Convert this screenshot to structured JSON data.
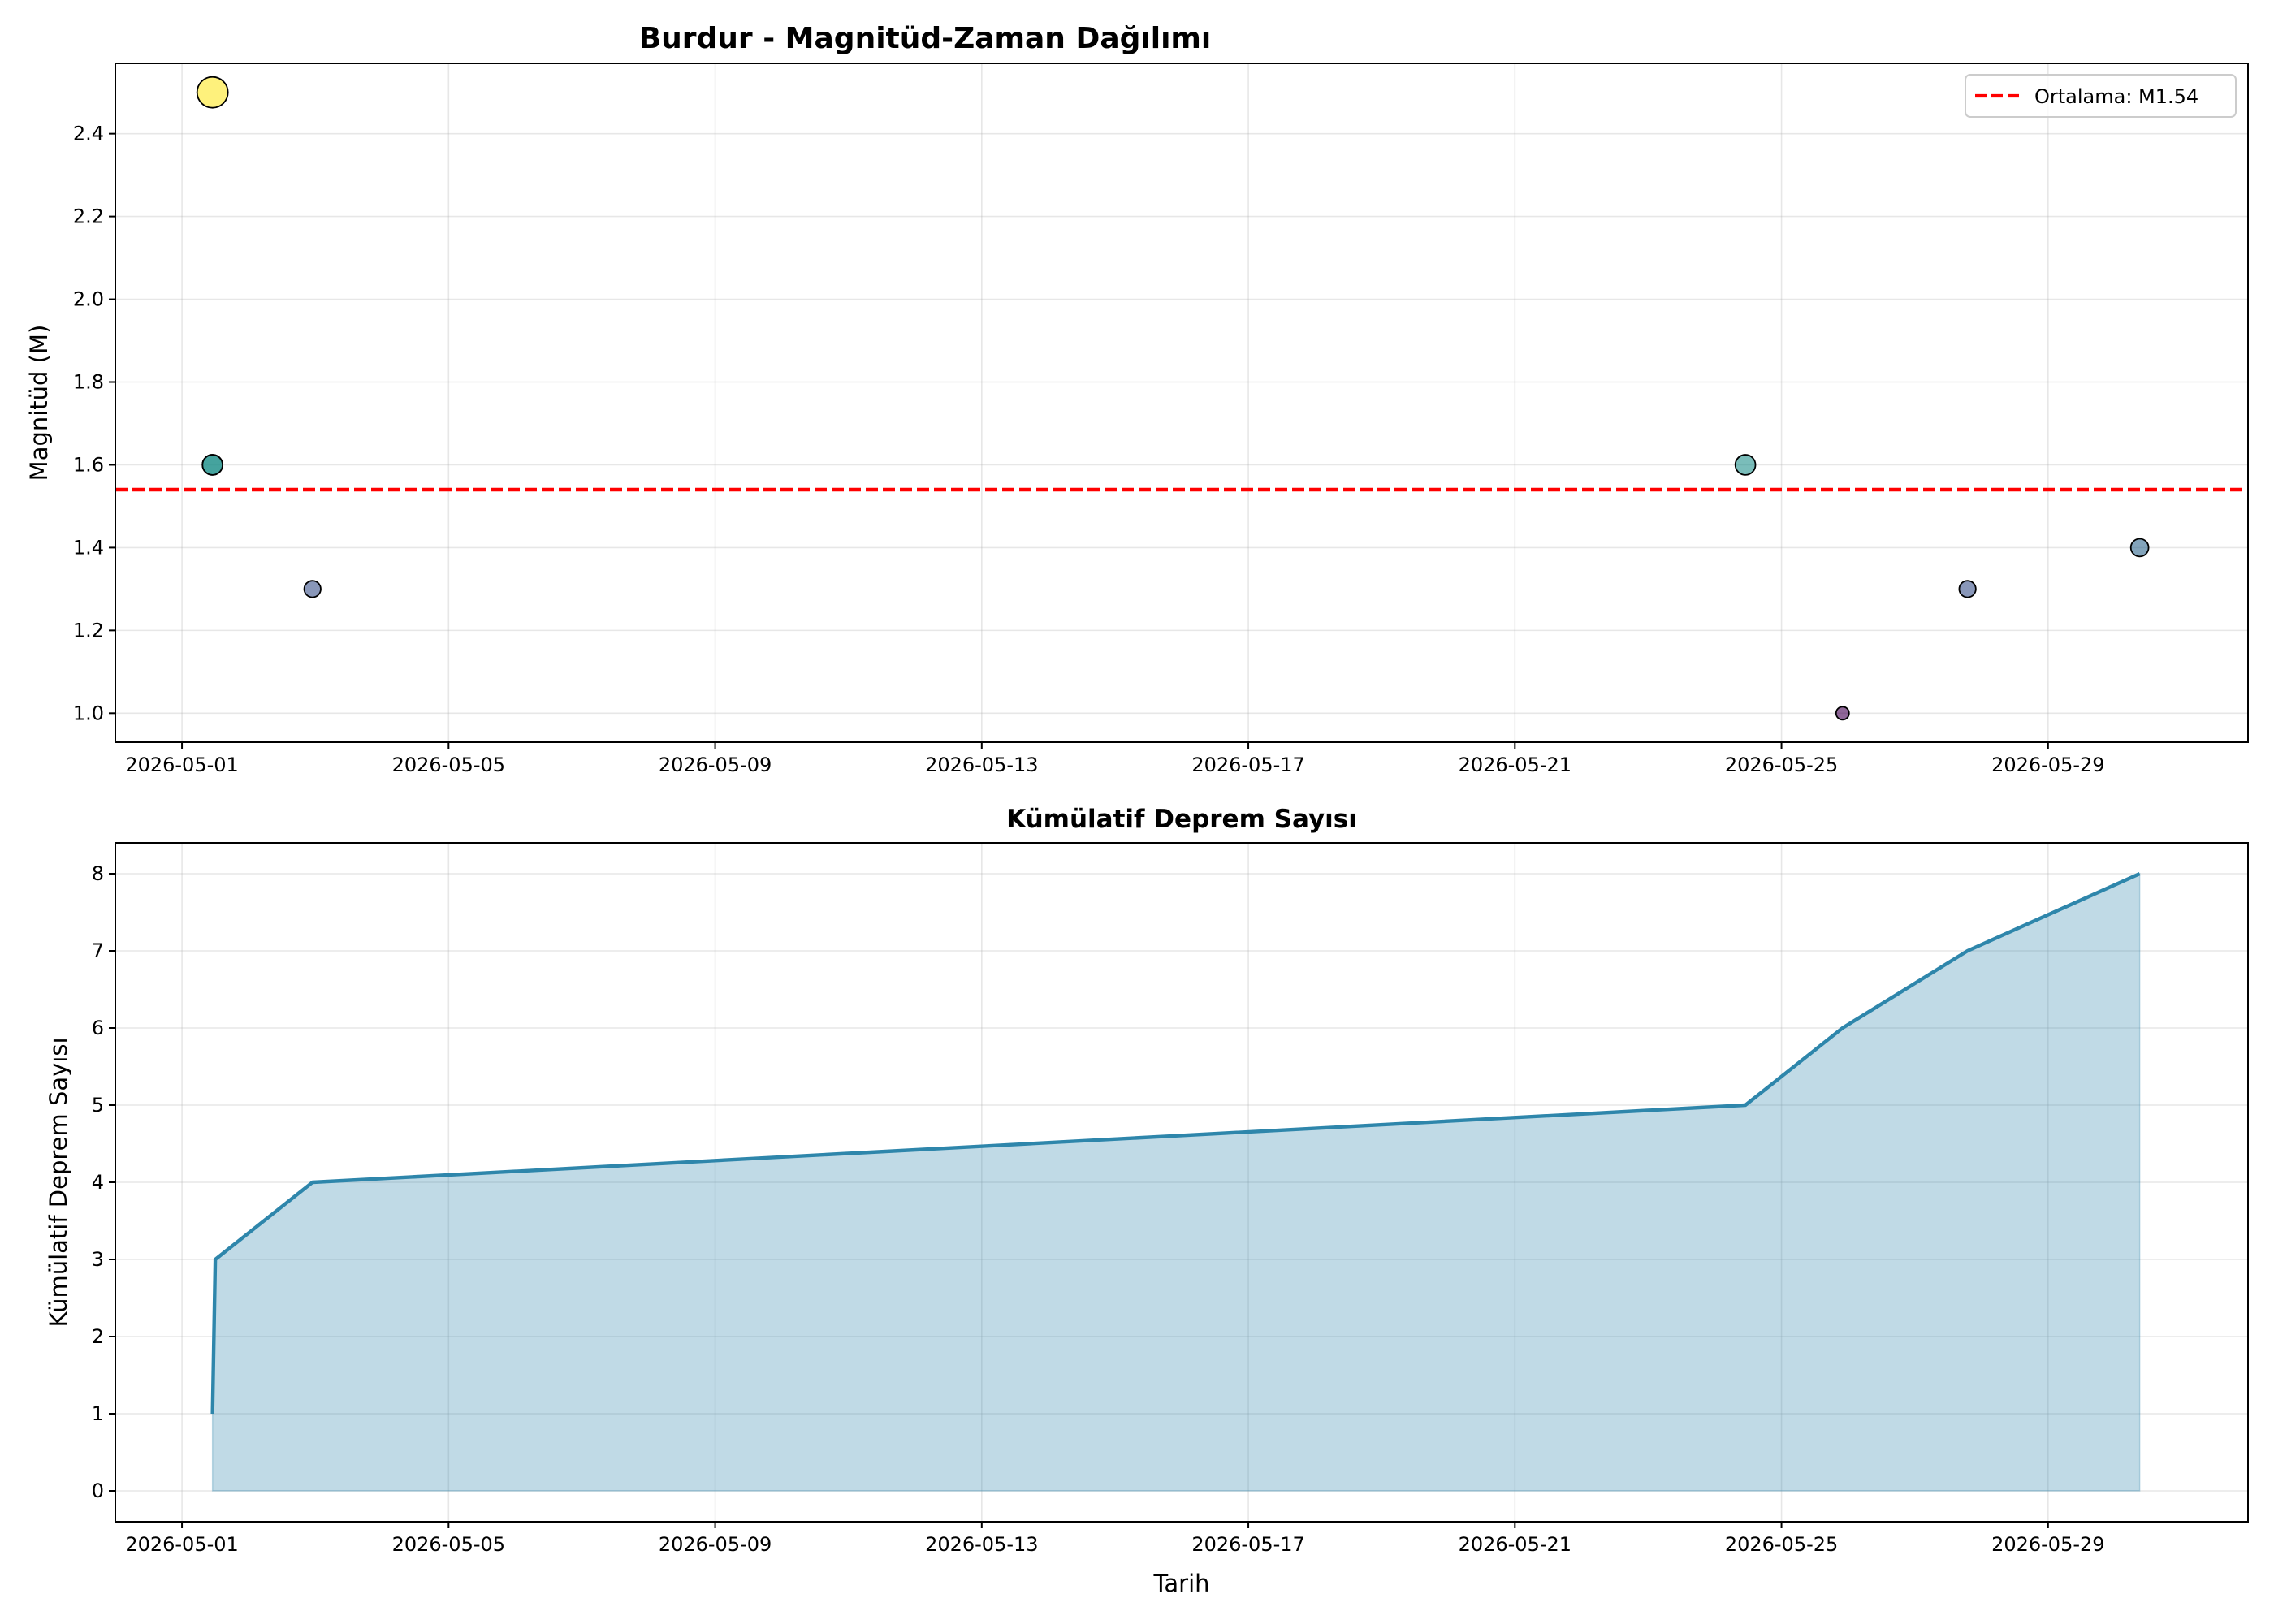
{
  "chart_data": [
    {
      "type": "scatter",
      "title": "Burdur - Magnitüd-Zaman Dağılımı",
      "xlabel": "",
      "ylabel": "Magnitüd (M)",
      "xlim": [
        "2026-04-30",
        "2026-06-01"
      ],
      "ylim": [
        0.93,
        2.57
      ],
      "grid": true,
      "legend_location": "top-right",
      "x_ticks": [
        "2026-05-01",
        "2026-05-05",
        "2026-05-09",
        "2026-05-13",
        "2026-05-17",
        "2026-05-21",
        "2026-05-25",
        "2026-05-29"
      ],
      "y_ticks": [
        "1.0",
        "1.2",
        "1.4",
        "1.6",
        "1.8",
        "2.0",
        "2.2",
        "2.4"
      ],
      "points": [
        {
          "x": "2026-05-01 11:00",
          "y": 2.5,
          "color": "#fde725"
        },
        {
          "x": "2026-05-01 11:00",
          "y": 1.6,
          "color": "#21918c"
        },
        {
          "x": "2026-05-01 11:00",
          "y": 1.6,
          "color": "#21918c"
        },
        {
          "x": "2026-05-02 23:00",
          "y": 1.3,
          "color": "#3b528b"
        },
        {
          "x": "2026-05-24 11:00",
          "y": 1.6,
          "color": "#21918c"
        },
        {
          "x": "2026-05-25 22:00",
          "y": 1.0,
          "color": "#440154"
        },
        {
          "x": "2026-05-27 19:00",
          "y": 1.3,
          "color": "#3b528b"
        },
        {
          "x": "2026-05-30 09:00",
          "y": 1.4,
          "color": "#31688e"
        }
      ],
      "reference_line": {
        "y": 1.54,
        "label": "Ortalama: M1.54",
        "color": "#ff0000"
      }
    },
    {
      "type": "area",
      "title": "Kümülatif Deprem Sayısı",
      "xlabel": "Tarih",
      "ylabel": "Kümülatif Deprem Sayısı",
      "xlim": [
        "2026-04-30",
        "2026-06-01"
      ],
      "ylim": [
        -0.4,
        8.4
      ],
      "grid": true,
      "x_ticks": [
        "2026-05-01",
        "2026-05-05",
        "2026-05-09",
        "2026-05-13",
        "2026-05-17",
        "2026-05-21",
        "2026-05-25",
        "2026-05-29"
      ],
      "y_ticks": [
        "0",
        "1",
        "2",
        "3",
        "4",
        "5",
        "6",
        "7",
        "8"
      ],
      "line_color": "#2e86ab",
      "fill_color": "#2e86ab",
      "points": [
        {
          "x": "2026-05-01 11:00",
          "y": 1
        },
        {
          "x": "2026-05-01 11:30",
          "y": 2
        },
        {
          "x": "2026-05-01 12:00",
          "y": 3
        },
        {
          "x": "2026-05-02 23:00",
          "y": 4
        },
        {
          "x": "2026-05-24 11:00",
          "y": 5
        },
        {
          "x": "2026-05-25 22:00",
          "y": 6
        },
        {
          "x": "2026-05-27 19:00",
          "y": 7
        },
        {
          "x": "2026-05-30 09:00",
          "y": 8
        }
      ]
    }
  ]
}
